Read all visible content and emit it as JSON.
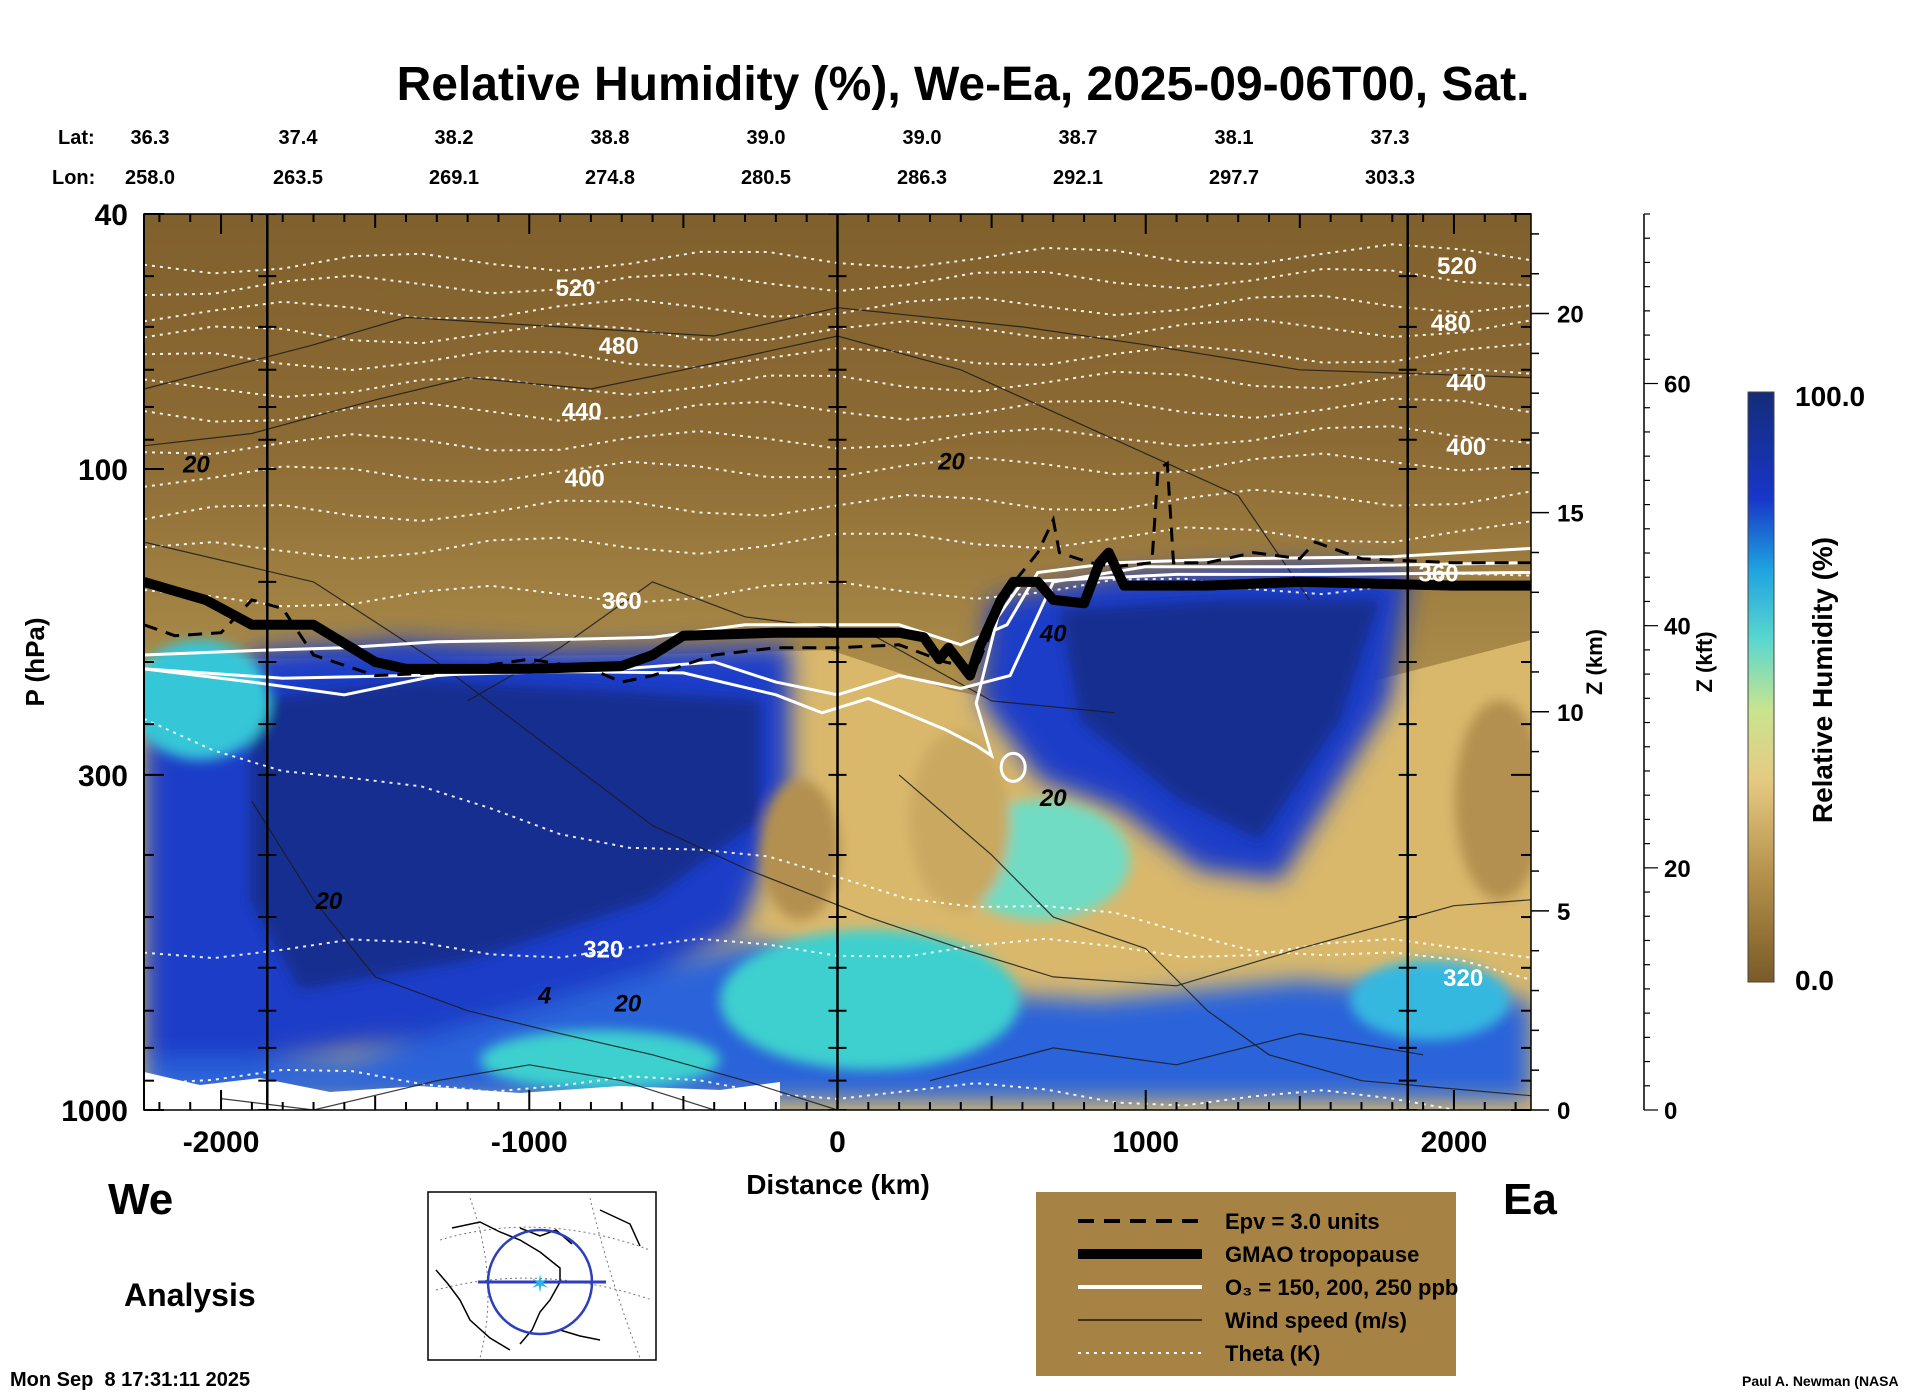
{
  "chart_data": {
    "type": "heatmap",
    "title": "Relative Humidity (%), We-Ea, 2025-09-06T00, Sat.",
    "xlabel": "Distance (km)",
    "ylabel": "P (hPa)",
    "y2label": "Z (km)",
    "y3label": "Z (kft)",
    "xlim": [
      -2250,
      2250
    ],
    "ylim": [
      1000,
      40
    ],
    "x_ticks": [
      -2000,
      -1000,
      0,
      1000,
      2000
    ],
    "y_ticks": [
      40,
      100,
      300,
      1000
    ],
    "z_km_ticks": [
      0,
      5,
      10,
      15,
      20
    ],
    "z_kft_ticks": [
      0,
      20,
      40,
      60
    ],
    "lat_label": "Lat:",
    "lon_label": "Lon:",
    "lat": [
      "36.3",
      "37.4",
      "38.2",
      "38.8",
      "39.0",
      "39.0",
      "38.7",
      "38.1",
      "37.3"
    ],
    "lon": [
      "258.0",
      "263.5",
      "269.1",
      "274.8",
      "280.5",
      "286.3",
      "292.1",
      "297.7",
      "303.3"
    ],
    "vertical_markers_km": [
      -1850,
      0,
      1850
    ],
    "left_end": "We",
    "right_end": "Ea",
    "colorbar": {
      "label": "Relative Humidity (%)",
      "min": "0.0",
      "max": "100.0"
    },
    "theta_labels": [
      {
        "text": "520",
        "x": -850,
        "p": 52
      },
      {
        "text": "480",
        "x": -710,
        "p": 64
      },
      {
        "text": "440",
        "x": -830,
        "p": 81
      },
      {
        "text": "400",
        "x": -820,
        "p": 103
      },
      {
        "text": "360",
        "x": -700,
        "p": 160
      },
      {
        "text": "320",
        "x": -760,
        "p": 560
      },
      {
        "text": "520",
        "x": 2010,
        "p": 48
      },
      {
        "text": "480",
        "x": 1990,
        "p": 59
      },
      {
        "text": "440",
        "x": 2040,
        "p": 73
      },
      {
        "text": "400",
        "x": 2040,
        "p": 92
      },
      {
        "text": "360",
        "x": 1950,
        "p": 145
      },
      {
        "text": "320",
        "x": 2030,
        "p": 620
      }
    ],
    "wind_labels": [
      {
        "text": "20",
        "x": -2080,
        "p": 98
      },
      {
        "text": "20",
        "x": 370,
        "p": 97
      },
      {
        "text": "40",
        "x": 700,
        "p": 180
      },
      {
        "text": "20",
        "x": 700,
        "p": 325
      },
      {
        "text": "20",
        "x": -1650,
        "p": 470
      },
      {
        "text": "20",
        "x": -680,
        "p": 680
      },
      {
        "text": "4",
        "x": -950,
        "p": 660
      }
    ],
    "legend": [
      {
        "style": "dashed",
        "label": "Epv = 3.0 units"
      },
      {
        "style": "thick",
        "label": "GMAO tropopause"
      },
      {
        "style": "white",
        "label": "O₃ = 150, 200, 250 ppb"
      },
      {
        "style": "thin",
        "label": "Wind speed (m/s)"
      },
      {
        "style": "dotted",
        "label": "Theta (K)"
      }
    ],
    "tropopause_hPa": [
      [
        -2250,
        150
      ],
      [
        -2150,
        155
      ],
      [
        -2050,
        160
      ],
      [
        -1900,
        175
      ],
      [
        -1700,
        175
      ],
      [
        -1500,
        200
      ],
      [
        -1400,
        205
      ],
      [
        -1000,
        205
      ],
      [
        -700,
        203
      ],
      [
        -600,
        195
      ],
      [
        -500,
        182
      ],
      [
        -200,
        180
      ],
      [
        0,
        180
      ],
      [
        200,
        180
      ],
      [
        280,
        183
      ],
      [
        330,
        198
      ],
      [
        360,
        190
      ],
      [
        430,
        210
      ],
      [
        460,
        190
      ],
      [
        530,
        160
      ],
      [
        570,
        150
      ],
      [
        650,
        150
      ],
      [
        700,
        160
      ],
      [
        800,
        162
      ],
      [
        850,
        140
      ],
      [
        880,
        135
      ],
      [
        930,
        152
      ],
      [
        1200,
        152
      ],
      [
        1500,
        150
      ],
      [
        2000,
        152
      ],
      [
        2250,
        152
      ]
    ]
  },
  "footer": {
    "mode": "Analysis",
    "timestamp": "Mon Sep  8 17:31:11 2025",
    "credit": "Paul A. Newman (NASA"
  }
}
